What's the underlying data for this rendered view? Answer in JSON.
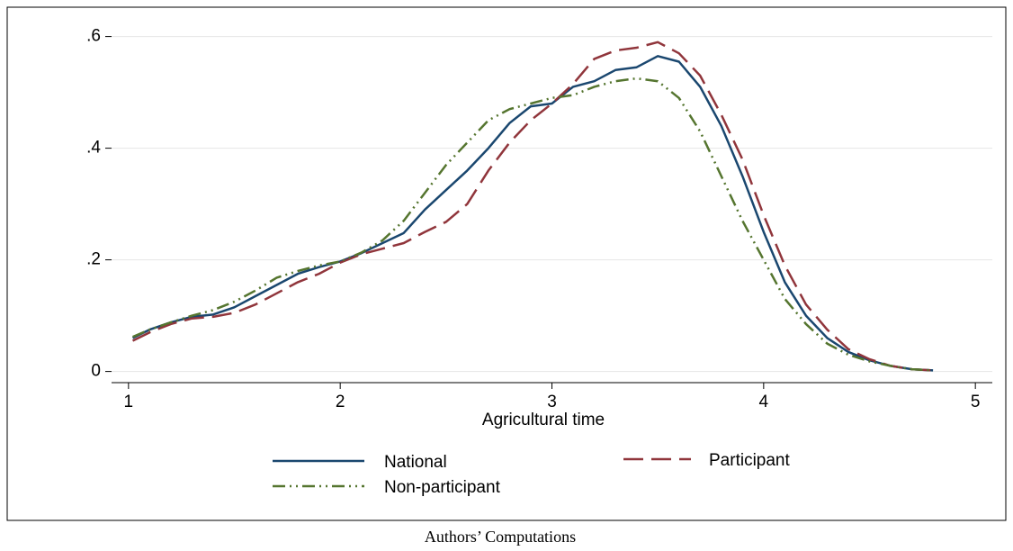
{
  "chart_data": {
    "type": "line",
    "x_label": "Agricultural time",
    "caption": "Authors’ Computations",
    "xlim": [
      0.92,
      5.08
    ],
    "ylim": [
      -0.02,
      0.63
    ],
    "xticks": [
      1,
      2,
      3,
      4,
      5
    ],
    "yticks": [
      {
        "value": 0.6,
        "label": ".6"
      },
      {
        "value": 0.4,
        "label": ".4"
      },
      {
        "value": 0.2,
        "label": ".2"
      },
      0
    ],
    "grid": true,
    "legend": "bottom",
    "x": [
      1.02,
      1.1,
      1.2,
      1.3,
      1.4,
      1.5,
      1.6,
      1.7,
      1.8,
      1.9,
      2.0,
      2.1,
      2.2,
      2.3,
      2.4,
      2.5,
      2.6,
      2.7,
      2.8,
      2.9,
      3.0,
      3.1,
      3.2,
      3.3,
      3.4,
      3.5,
      3.6,
      3.7,
      3.8,
      3.9,
      4.0,
      4.1,
      4.2,
      4.3,
      4.4,
      4.5,
      4.6,
      4.7,
      4.8
    ],
    "series": [
      {
        "name": "National",
        "color": "#1a476f",
        "dash": "solid",
        "values": [
          0.06,
          0.075,
          0.088,
          0.098,
          0.102,
          0.115,
          0.135,
          0.155,
          0.175,
          0.187,
          0.197,
          0.212,
          0.23,
          0.248,
          0.29,
          0.325,
          0.36,
          0.4,
          0.445,
          0.475,
          0.48,
          0.51,
          0.52,
          0.54,
          0.545,
          0.565,
          0.555,
          0.51,
          0.44,
          0.35,
          0.25,
          0.16,
          0.1,
          0.06,
          0.035,
          0.02,
          0.01,
          0.004,
          0.002
        ]
      },
      {
        "name": "Participant",
        "color": "#90353b",
        "dash": "longdash",
        "values": [
          0.055,
          0.07,
          0.085,
          0.095,
          0.098,
          0.105,
          0.12,
          0.14,
          0.16,
          0.175,
          0.195,
          0.21,
          0.22,
          0.23,
          0.25,
          0.268,
          0.3,
          0.36,
          0.41,
          0.45,
          0.48,
          0.515,
          0.56,
          0.575,
          0.58,
          0.59,
          0.57,
          0.53,
          0.46,
          0.38,
          0.28,
          0.19,
          0.12,
          0.075,
          0.04,
          0.022,
          0.01,
          0.004,
          0.002
        ]
      },
      {
        "name": "Non-participant",
        "color": "#55752f",
        "dash": "dashdotdot",
        "values": [
          0.062,
          0.075,
          0.088,
          0.1,
          0.11,
          0.125,
          0.145,
          0.168,
          0.18,
          0.19,
          0.197,
          0.213,
          0.235,
          0.27,
          0.32,
          0.37,
          0.41,
          0.45,
          0.47,
          0.48,
          0.49,
          0.495,
          0.51,
          0.52,
          0.525,
          0.52,
          0.49,
          0.43,
          0.35,
          0.27,
          0.2,
          0.13,
          0.085,
          0.05,
          0.03,
          0.018,
          0.01,
          0.004,
          0.002
        ]
      }
    ]
  }
}
